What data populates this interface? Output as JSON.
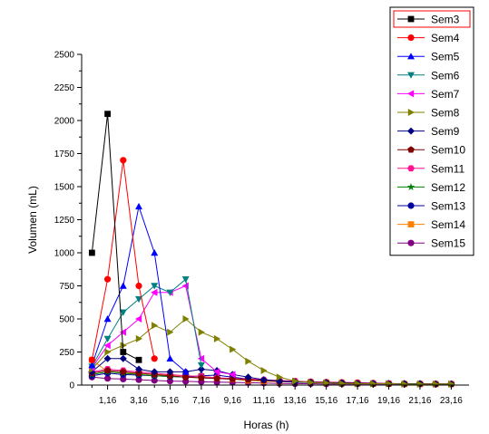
{
  "chart_data": {
    "type": "line",
    "xlabel": "Horas (h)",
    "ylabel": "Volumen (mL)",
    "xlim": [
      -0.5,
      24.3
    ],
    "ylim": [
      0,
      2500
    ],
    "x_ticks": [
      1.16,
      3.16,
      5.16,
      7.16,
      9.16,
      11.16,
      13.16,
      15.16,
      17.16,
      19.16,
      21.16,
      23.16
    ],
    "x_tick_labels": [
      "1,16",
      "3,16",
      "5,16",
      "7,16",
      "9,16",
      "11,16",
      "13,16",
      "15,16",
      "17,16",
      "19,16",
      "21,16",
      "23,16"
    ],
    "y_ticks": [
      0,
      250,
      500,
      750,
      1000,
      1250,
      1500,
      1750,
      2000,
      2250,
      2500
    ],
    "y_tick_labels": [
      "0",
      "250",
      "500",
      "750",
      "1000",
      "1250",
      "1500",
      "1750",
      "2000",
      "2250",
      "2500"
    ],
    "legend_placement": "top-right",
    "series": [
      {
        "name": "Sem3",
        "color": "#000000",
        "marker": "square",
        "x": [
          0.16,
          1.16,
          2.16,
          3.16
        ],
        "values": [
          1000,
          2050,
          250,
          190
        ]
      },
      {
        "name": "Sem4",
        "color": "#ff0000",
        "marker": "circle",
        "x": [
          0.16,
          1.16,
          2.16,
          3.16,
          4.16
        ],
        "values": [
          190,
          800,
          1700,
          750,
          200
        ]
      },
      {
        "name": "Sem5",
        "color": "#0000ff",
        "marker": "triangle-up",
        "x": [
          0.16,
          1.16,
          2.16,
          3.16,
          4.16,
          5.16,
          6.16
        ],
        "values": [
          150,
          500,
          750,
          1350,
          1000,
          200,
          100
        ]
      },
      {
        "name": "Sem6",
        "color": "#008080",
        "marker": "triangle-down",
        "x": [
          0.16,
          1.16,
          2.16,
          3.16,
          4.16,
          5.16,
          6.16,
          7.16
        ],
        "values": [
          140,
          350,
          550,
          650,
          750,
          700,
          800,
          150
        ]
      },
      {
        "name": "Sem7",
        "color": "#ff00ff",
        "marker": "triangle-left",
        "x": [
          0.16,
          1.16,
          2.16,
          3.16,
          4.16,
          5.16,
          6.16,
          7.16,
          8.16,
          9.16
        ],
        "values": [
          130,
          300,
          400,
          500,
          700,
          700,
          750,
          200,
          100,
          80
        ]
      },
      {
        "name": "Sem8",
        "color": "#808000",
        "marker": "triangle-right",
        "x": [
          0.16,
          1.16,
          2.16,
          3.16,
          4.16,
          5.16,
          6.16,
          7.16,
          8.16,
          9.16,
          10.16,
          11.16,
          12.16,
          13.16,
          14.16,
          15.16,
          16.16,
          17.16,
          18.16,
          19.16,
          20.16,
          21.16,
          22.16,
          23.16
        ],
        "values": [
          120,
          250,
          300,
          350,
          450,
          400,
          500,
          400,
          350,
          270,
          180,
          110,
          60,
          30,
          20,
          15,
          12,
          10,
          10,
          10,
          8,
          8,
          8,
          8
        ]
      },
      {
        "name": "Sem9",
        "color": "#000080",
        "marker": "diamond",
        "x": [
          0.16,
          1.16,
          2.16,
          3.16,
          4.16,
          5.16,
          6.16,
          7.16,
          8.16,
          9.16,
          10.16,
          11.16,
          12.16,
          13.16,
          14.16,
          15.16,
          16.16,
          17.16,
          18.16,
          19.16,
          20.16,
          21.16,
          22.16,
          23.16
        ],
        "values": [
          100,
          200,
          200,
          120,
          100,
          100,
          100,
          120,
          110,
          80,
          60,
          40,
          30,
          25,
          20,
          18,
          15,
          12,
          12,
          10,
          10,
          10,
          8,
          8
        ]
      },
      {
        "name": "Sem10",
        "color": "#800000",
        "marker": "pentagon",
        "x": [
          0.16,
          1.16,
          2.16,
          3.16,
          4.16,
          5.16,
          6.16,
          7.16,
          8.16,
          9.16,
          10.16,
          11.16,
          12.16,
          13.16,
          14.16,
          15.16,
          16.16,
          17.16,
          18.16,
          19.16,
          20.16,
          21.16,
          22.16,
          23.16
        ],
        "values": [
          90,
          110,
          100,
          90,
          80,
          70,
          60,
          55,
          50,
          45,
          40,
          35,
          30,
          25,
          22,
          20,
          18,
          15,
          12,
          10,
          10,
          10,
          8,
          8
        ]
      },
      {
        "name": "Sem11",
        "color": "#ff1493",
        "marker": "hexagon",
        "x": [
          0.16,
          1.16,
          2.16,
          3.16,
          4.16,
          5.16,
          6.16,
          7.16,
          8.16,
          9.16,
          10.16,
          11.16,
          12.16,
          13.16,
          14.16,
          15.16,
          16.16,
          17.16,
          18.16,
          19.16,
          20.16,
          21.16,
          22.16,
          23.16
        ],
        "values": [
          100,
          120,
          110,
          100,
          90,
          80,
          70,
          65,
          55,
          50,
          45,
          40,
          35,
          30,
          25,
          22,
          20,
          18,
          15,
          12,
          10,
          10,
          8,
          8
        ]
      },
      {
        "name": "Sem12",
        "color": "#008000",
        "marker": "star",
        "x": [
          0.16,
          1.16,
          2.16,
          3.16,
          4.16,
          5.16,
          6.16,
          7.16,
          8.16,
          9.16,
          10.16,
          11.16,
          12.16,
          13.16,
          14.16,
          15.16,
          16.16,
          17.16,
          18.16,
          19.16,
          20.16,
          21.16,
          22.16,
          23.16
        ],
        "values": [
          80,
          100,
          90,
          80,
          70,
          65,
          60,
          55,
          50,
          45,
          40,
          35,
          30,
          25,
          22,
          20,
          18,
          15,
          12,
          10,
          10,
          8,
          8,
          8
        ]
      },
      {
        "name": "Sem13",
        "color": "#0000a0",
        "marker": "circle",
        "x": [
          0.16,
          1.16,
          2.16,
          3.16,
          4.16,
          5.16,
          6.16,
          7.16,
          8.16,
          9.16,
          10.16,
          11.16,
          12.16,
          13.16,
          14.16,
          15.16,
          16.16,
          17.16,
          18.16,
          19.16,
          20.16,
          21.16,
          22.16,
          23.16
        ],
        "values": [
          70,
          90,
          80,
          75,
          70,
          65,
          60,
          70,
          75,
          60,
          45,
          35,
          28,
          22,
          20,
          18,
          15,
          12,
          10,
          10,
          8,
          8,
          8,
          8
        ]
      },
      {
        "name": "Sem14",
        "color": "#ff8000",
        "marker": "square",
        "x": [
          0.16,
          1.16,
          2.16,
          3.16,
          4.16,
          5.16,
          6.16,
          7.16,
          8.16,
          9.16,
          10.16,
          11.16,
          12.16,
          13.16,
          14.16,
          15.16,
          16.16,
          17.16,
          18.16,
          19.16,
          20.16,
          21.16,
          22.16,
          23.16
        ],
        "values": [
          190,
          100,
          90,
          90,
          80,
          75,
          70,
          65,
          55,
          45,
          35,
          30,
          25,
          22,
          20,
          18,
          15,
          12,
          10,
          10,
          8,
          8,
          8,
          8
        ]
      },
      {
        "name": "Sem15",
        "color": "#800080",
        "marker": "circle",
        "x": [
          0.16,
          1.16,
          2.16,
          3.16,
          4.16,
          5.16,
          6.16,
          7.16,
          8.16,
          9.16,
          10.16,
          11.16,
          12.16,
          13.16,
          14.16,
          15.16,
          16.16,
          17.16,
          18.16,
          19.16,
          20.16,
          21.16,
          22.16,
          23.16
        ],
        "values": [
          60,
          50,
          45,
          40,
          35,
          30,
          28,
          25,
          22,
          20,
          18,
          15,
          12,
          10,
          10,
          8,
          8,
          8,
          8,
          8,
          8,
          8,
          8,
          8
        ]
      }
    ]
  }
}
